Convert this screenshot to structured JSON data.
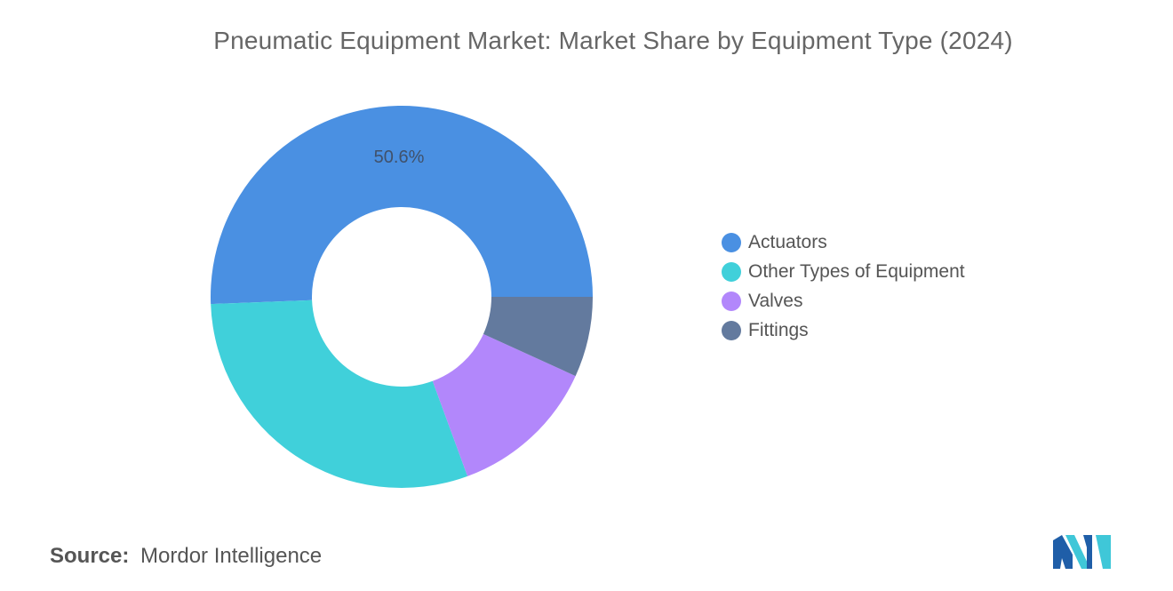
{
  "title": "Pneumatic Equipment Market: Market Share by Equipment Type (2024)",
  "chart_data": {
    "type": "pie",
    "style": "donut",
    "title": "Pneumatic Equipment Market: Market Share by Equipment Type (2024)",
    "unit": "%",
    "slices": [
      {
        "name": "Actuators",
        "value": 50.6,
        "color": "#4a90e2",
        "label": "50.6%"
      },
      {
        "name": "Other Types of Equipment",
        "value": 30.0,
        "color": "#40d0da",
        "label": ""
      },
      {
        "name": "Valves",
        "value": 12.6,
        "color": "#b287fb",
        "label": ""
      },
      {
        "name": "Fittings",
        "value": 6.8,
        "color": "#637a9e",
        "label": ""
      }
    ],
    "legend_position": "right"
  },
  "source": {
    "label": "Source:",
    "text": "Mordor Intelligence"
  },
  "logo": {
    "icon": "mordor-intelligence-logo",
    "colors": [
      "#1f5ea8",
      "#3fc7d8"
    ]
  }
}
